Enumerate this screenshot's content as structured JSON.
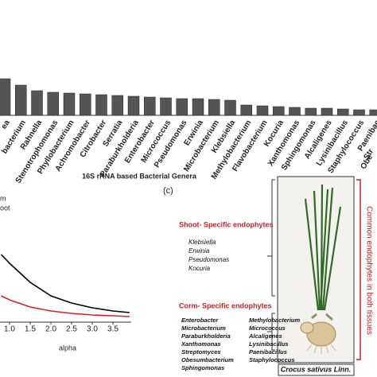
{
  "chart_data": [
    {
      "type": "bar",
      "categories": [
        "ea",
        "bacterium",
        "Rahnella",
        "Stenotrophomonas",
        "Phyllobacterium",
        "Achromobacter",
        "Citrobacter",
        "Serratia",
        "Paraburkholderia",
        "Enterobacter",
        "Micrococcus",
        "Pseudomonas",
        "Erwinia",
        "Microbacterium",
        "Klebsiella",
        "Methylobacterium",
        "Flavobacterium",
        "Kocuria",
        "Xanthomonas",
        "Sphingomonas",
        "Alcaligenes",
        "Lysinibacillus",
        "Staphylococcus",
        "Paenibac",
        "Str",
        "Obe"
      ],
      "values": [
        46,
        38,
        31,
        29,
        28,
        27,
        26,
        25,
        24,
        23,
        22,
        21,
        21,
        20,
        19,
        13,
        12,
        11,
        10,
        9,
        9,
        8,
        7,
        7,
        null,
        null
      ],
      "ylim": [
        0,
        50
      ],
      "color": "#555555",
      "xlabel": "16S rRNA based Bacterial Genera"
    },
    {
      "type": "line",
      "x": [
        0.8,
        1.0,
        1.5,
        2.0,
        2.5,
        3.0,
        3.5,
        3.9
      ],
      "series": [
        {
          "name": "m",
          "color": "#000000",
          "values": [
            8.5,
            7.4,
            5.0,
            3.3,
            2.4,
            1.8,
            1.4,
            1.2
          ]
        },
        {
          "name": "oot",
          "color": "#e02020",
          "values": [
            3.3,
            2.8,
            1.9,
            1.4,
            1.1,
            0.9,
            0.8,
            0.7
          ]
        }
      ],
      "xlim": [
        0.77,
        3.94
      ],
      "ylim": [
        0,
        9
      ],
      "xticks": [
        {
          "value": 1,
          "label": "1.0"
        },
        1.5,
        {
          "value": 2,
          "label": "2.0"
        },
        2.5,
        {
          "value": 3,
          "label": "3.0"
        },
        3.5
      ],
      "xlabel": "alpha"
    }
  ],
  "panel_label": "(c)",
  "shoot": {
    "title": "Shoot- Specific endophytes",
    "genera": [
      "Klebsiella",
      "Erwinia",
      "Pseudomonas",
      "Kocuria"
    ]
  },
  "corm": {
    "title": "Corm- Specific endophytes",
    "columns": [
      [
        "Enterobacter",
        "Microbacterium",
        "Paraburkholderia",
        "Xanthomonas",
        "Streptomyces",
        "Obesumbacterium",
        "Sphingomonas"
      ],
      [
        "Methylobacterium",
        "Micrococcus",
        "Alcaligenes",
        "Lysinibacillus",
        "Paenibacillus",
        "Staphylococcus"
      ]
    ]
  },
  "common_label": "Common endophytes in both tissues",
  "photo_caption": "Crocus sativus Linn."
}
